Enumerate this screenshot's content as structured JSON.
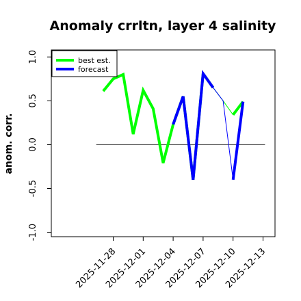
{
  "chart_data": {
    "type": "line",
    "title": "Anomaly crrltn, layer 4 salinity",
    "ylabel": "anom. corr.",
    "xlabel": "",
    "ylim": [
      -1.05,
      1.08
    ],
    "xlim": [
      -6.2,
      16.2
    ],
    "y_ticks": [
      -1.0,
      -0.5,
      0.0,
      0.5,
      1.0
    ],
    "y_tick_labels": [
      "-1.0",
      "-0.5",
      "0.0",
      "0.5",
      "1.0"
    ],
    "x_ticks": [
      {
        "day": 0,
        "label": "2025-11-28",
        "color": "#000000"
      },
      {
        "day": 3,
        "label": "2025-12-01",
        "color": "#000000"
      },
      {
        "day": 6,
        "label": "2025-12-04",
        "color": "#228B22"
      },
      {
        "day": 9,
        "label": "2025-12-07",
        "color": "#000000"
      },
      {
        "day": 12,
        "label": "2025-12-10",
        "color": "#000000"
      },
      {
        "day": 15,
        "label": "2025-12-13",
        "color": "#000000"
      }
    ],
    "reference_line": 0,
    "legend": {
      "position": "top-left",
      "entries": [
        {
          "name": "best est.",
          "color": "#00ff00"
        },
        {
          "name": "forecast",
          "color": "#0000ff"
        }
      ]
    },
    "series": [
      {
        "name": "best est.",
        "color": "#00ff00",
        "x": [
          -1,
          0,
          1,
          2,
          3,
          4,
          5,
          6,
          7,
          8,
          9,
          10,
          11,
          12,
          13
        ],
        "y": [
          0.61,
          0.75,
          0.8,
          0.12,
          0.62,
          0.41,
          -0.21,
          0.23,
          0.55,
          -0.4,
          0.81,
          0.65,
          0.5,
          0.34,
          0.49
        ],
        "segments": [
          {
            "from": 0,
            "to": 10,
            "width": 4
          },
          {
            "from": 10,
            "to": 11,
            "width": 4
          },
          {
            "from": 11,
            "to": 13,
            "width": 1
          },
          {
            "from": 13,
            "to": 14,
            "width": 4
          }
        ]
      },
      {
        "name": "forecast",
        "color": "#0000ff",
        "x": [
          6,
          7,
          8,
          9,
          10,
          11,
          12,
          13
        ],
        "y": [
          0.23,
          0.55,
          -0.4,
          0.81,
          0.65,
          0.5,
          -0.4,
          0.49
        ],
        "segments": [
          {
            "from": 0,
            "to": 4,
            "width": 4
          },
          {
            "from": 4,
            "to": 6,
            "width": 1
          },
          {
            "from": 6,
            "to": 7,
            "width": 4
          }
        ]
      }
    ]
  }
}
